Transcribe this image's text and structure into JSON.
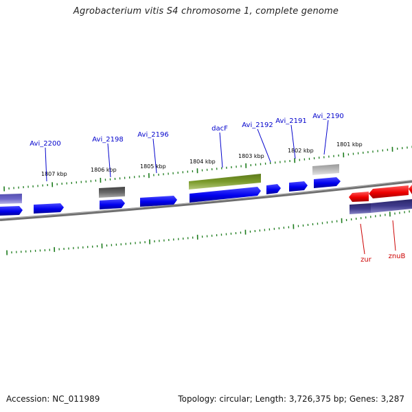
{
  "title": "Agrobacterium vitis S4 chromosome 1, complete genome",
  "footer": {
    "accession": "Accession: NC_011989",
    "summary": "Topology: circular; Length: 3,726,375 bp; Genes: 3,287"
  },
  "colors": {
    "backbone": "#808080",
    "tick": "#1a7a1a",
    "gene_forward": "#0000ff",
    "gene_reverse": "#ff0000",
    "gene_label_forward": "#0000cc",
    "gene_label_reverse": "#cc0000",
    "dacF_gene": "#6b8e23",
    "pseudo_gene_dark": "#555555",
    "pseudo_gene_light": "#aaaaaa",
    "purple_gene": "#3f3a8c",
    "kbp_label": "#000000"
  },
  "kbp_labels": [
    "1807 kbp",
    "1806 kbp",
    "1805 kbp",
    "1804 kbp",
    "1803 kbp",
    "1802 kbp",
    "1801 kbp"
  ],
  "gene_labels": [
    {
      "name": "Avi_2200",
      "strand": "forward"
    },
    {
      "name": "Avi_2198",
      "strand": "forward"
    },
    {
      "name": "Avi_2196",
      "strand": "forward"
    },
    {
      "name": "dacF",
      "strand": "forward"
    },
    {
      "name": "Avi_2192",
      "strand": "forward"
    },
    {
      "name": "Avi_2191",
      "strand": "forward"
    },
    {
      "name": "Avi_2190",
      "strand": "forward"
    },
    {
      "name": "zur",
      "strand": "reverse"
    },
    {
      "name": "znuB",
      "strand": "reverse"
    }
  ]
}
